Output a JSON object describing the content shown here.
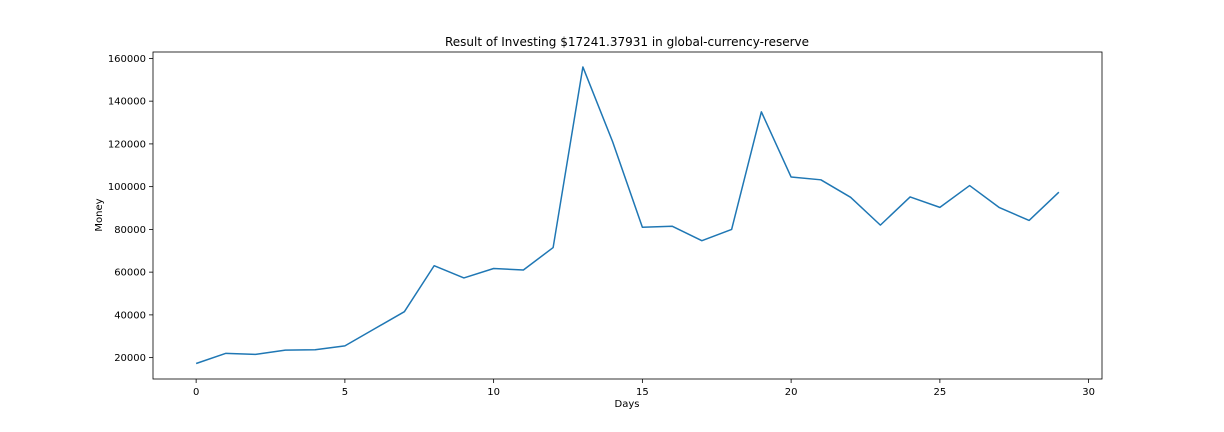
{
  "chart_data": {
    "type": "line",
    "title": "Result of Investing $17241.37931 in global-currency-reserve",
    "xlabel": "Days",
    "ylabel": "Money",
    "xlim": [
      -1.45,
      30.45
    ],
    "ylim": [
      10000,
      163000
    ],
    "xticks": [
      0,
      5,
      10,
      15,
      20,
      25,
      30
    ],
    "yticks": [
      20000,
      40000,
      60000,
      80000,
      100000,
      120000,
      140000,
      160000
    ],
    "grid": false,
    "line_color": "#1f77b4",
    "series": [
      {
        "x": [
          0,
          1,
          2,
          3,
          4,
          5,
          6,
          7,
          8,
          9,
          10,
          11,
          12,
          13,
          14,
          15,
          16,
          17,
          18,
          19,
          20,
          21,
          22,
          23,
          24,
          25,
          26,
          27,
          28,
          29
        ],
        "values": [
          17241,
          22000,
          21500,
          23500,
          23700,
          25500,
          33500,
          41500,
          63000,
          57300,
          61700,
          61000,
          71500,
          156000,
          121000,
          81000,
          81500,
          74700,
          80000,
          135000,
          104500,
          103200,
          95000,
          82000,
          95200,
          90300,
          100500,
          90200,
          84200,
          97400
        ]
      }
    ]
  }
}
